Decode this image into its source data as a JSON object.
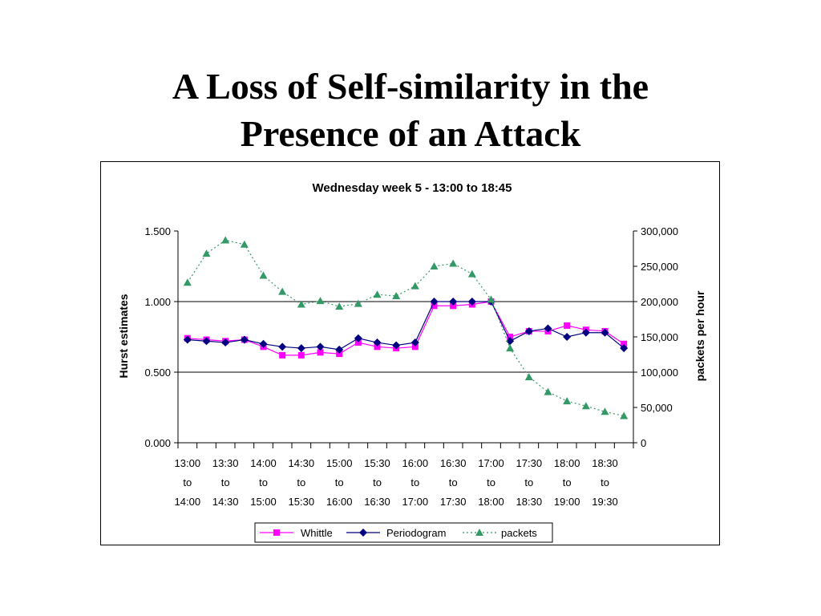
{
  "slide": {
    "title_line1": "A Loss of Self-similarity in the",
    "title_line2": "Presence of an Attack"
  },
  "chart_data": {
    "type": "line",
    "title": "Wednesday week 5 - 13:00 to 18:45",
    "ylabel_left": "Hurst estimates",
    "ylabel_right": "packets per hour",
    "ylim_left": [
      0,
      1.5
    ],
    "ylim_right": [
      0,
      300000
    ],
    "yticks_left": [
      "0.000",
      "0.500",
      "1.000",
      "1.500"
    ],
    "yticks_right": [
      "0",
      "50,000",
      "100,000",
      "150,000",
      "200,000",
      "250,000",
      "300,000"
    ],
    "x_tick_labels": [
      [
        "13:00",
        "to",
        "14:00"
      ],
      [
        "13:30",
        "to",
        "14:30"
      ],
      [
        "14:00",
        "to",
        "15:00"
      ],
      [
        "14:30",
        "to",
        "15:30"
      ],
      [
        "15:00",
        "to",
        "16:00"
      ],
      [
        "15:30",
        "to",
        "16:30"
      ],
      [
        "16:00",
        "to",
        "17:00"
      ],
      [
        "16:30",
        "to",
        "17:30"
      ],
      [
        "17:00",
        "to",
        "18:00"
      ],
      [
        "17:30",
        "to",
        "18:30"
      ],
      [
        "18:00",
        "to",
        "19:00"
      ],
      [
        "18:30",
        "to",
        "19:30"
      ]
    ],
    "num_points": 24,
    "gridlines_left": [
      0.5,
      1.0
    ],
    "grid": true,
    "legend_position": "bottom-center",
    "series": [
      {
        "name": "Whittle",
        "axis": "left",
        "color": "#ff00ff",
        "marker": "square",
        "values": [
          0.74,
          0.73,
          0.72,
          0.73,
          0.68,
          0.62,
          0.62,
          0.64,
          0.63,
          0.71,
          0.68,
          0.67,
          0.68,
          0.97,
          0.97,
          0.98,
          1.0,
          0.75,
          0.79,
          0.79,
          0.83,
          0.8,
          0.79,
          0.7
        ]
      },
      {
        "name": "Periodogram",
        "axis": "left",
        "color": "#000080",
        "marker": "diamond",
        "values": [
          0.73,
          0.72,
          0.71,
          0.73,
          0.7,
          0.68,
          0.67,
          0.68,
          0.66,
          0.74,
          0.71,
          0.69,
          0.71,
          1.0,
          1.0,
          1.0,
          1.0,
          0.72,
          0.79,
          0.81,
          0.75,
          0.78,
          0.78,
          0.67
        ]
      },
      {
        "name": "packets",
        "axis": "right",
        "color": "#339966",
        "marker": "triangle",
        "line_style": "dotted",
        "values": [
          227000,
          268000,
          287000,
          281000,
          237000,
          214000,
          196000,
          201000,
          193000,
          197000,
          210000,
          208000,
          222000,
          250000,
          254000,
          239000,
          203000,
          134000,
          93000,
          72000,
          59000,
          52000,
          44000,
          38000
        ]
      }
    ]
  }
}
